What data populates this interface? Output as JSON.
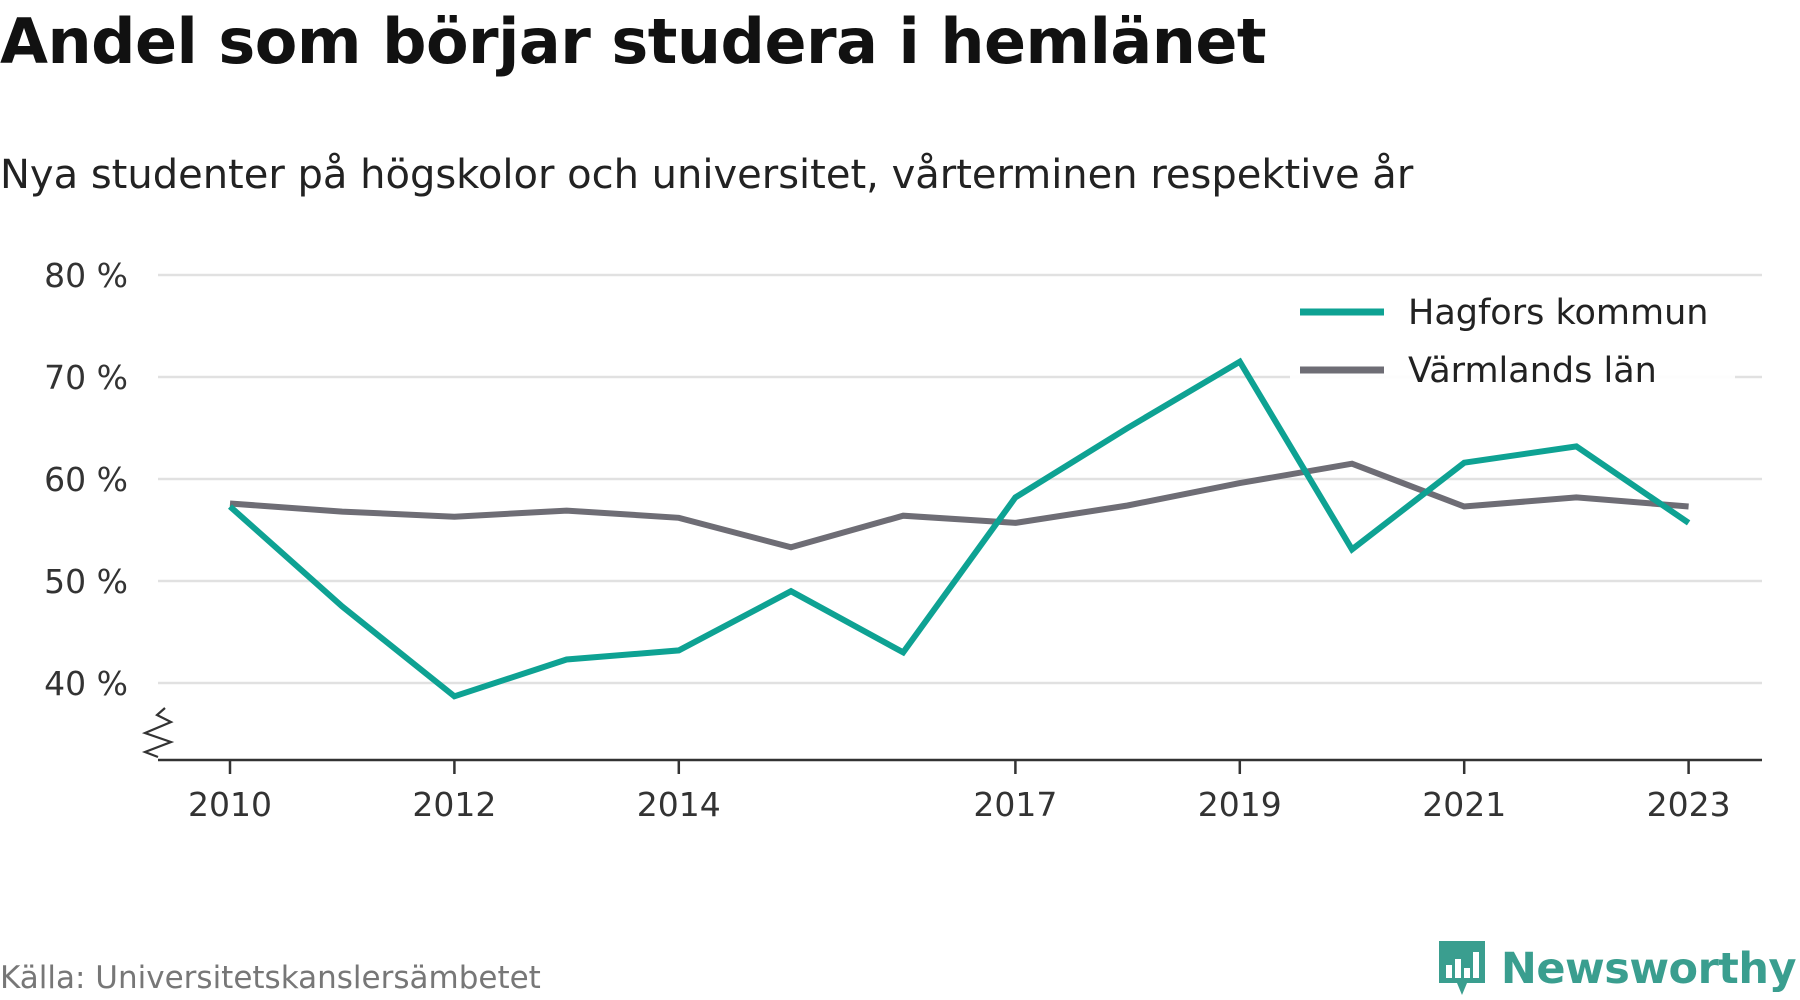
{
  "title": "Andel som börjar studera i hemlänet",
  "subtitle": "Nya studenter på högskolor och universitet, vårterminen respektive år",
  "source": "Källa: Universitetskanslersämbetet",
  "brand": {
    "name": "Newsworthy",
    "logo_icon": "bar-chart-speech-bubble-icon",
    "color": "#3a9e8f"
  },
  "chart_data": {
    "type": "line",
    "title": "Andel som börjar studera i hemlänet",
    "subtitle": "Nya studenter på högskolor och universitet, vårterminen respektive år",
    "x": [
      2010,
      2011,
      2012,
      2013,
      2014,
      2015,
      2016,
      2017,
      2018,
      2019,
      2020,
      2021,
      2022,
      2023
    ],
    "x_ticks": [
      2010,
      2012,
      2014,
      2017,
      2019,
      2021,
      2023
    ],
    "y_ticks": [
      40,
      50,
      60,
      70,
      80
    ],
    "y_tick_labels": [
      "40 %",
      "50 %",
      "60 %",
      "70 %",
      "80 %"
    ],
    "ylim": [
      33,
      80
    ],
    "y_axis_break": true,
    "grid": "horizontal",
    "legend_position": "top-right",
    "series": [
      {
        "name": "Hagfors kommun",
        "color": "#0ea293",
        "values": [
          57.3,
          47.5,
          38.7,
          42.3,
          43.2,
          49.0,
          43.0,
          58.2,
          65.0,
          71.5,
          53.1,
          61.6,
          63.2,
          55.7
        ]
      },
      {
        "name": "Värmlands län",
        "color": "#6e6d75",
        "values": [
          57.6,
          56.8,
          56.3,
          56.9,
          56.2,
          53.3,
          56.4,
          55.7,
          57.4,
          59.6,
          61.5,
          57.3,
          58.2,
          57.3
        ]
      }
    ]
  }
}
